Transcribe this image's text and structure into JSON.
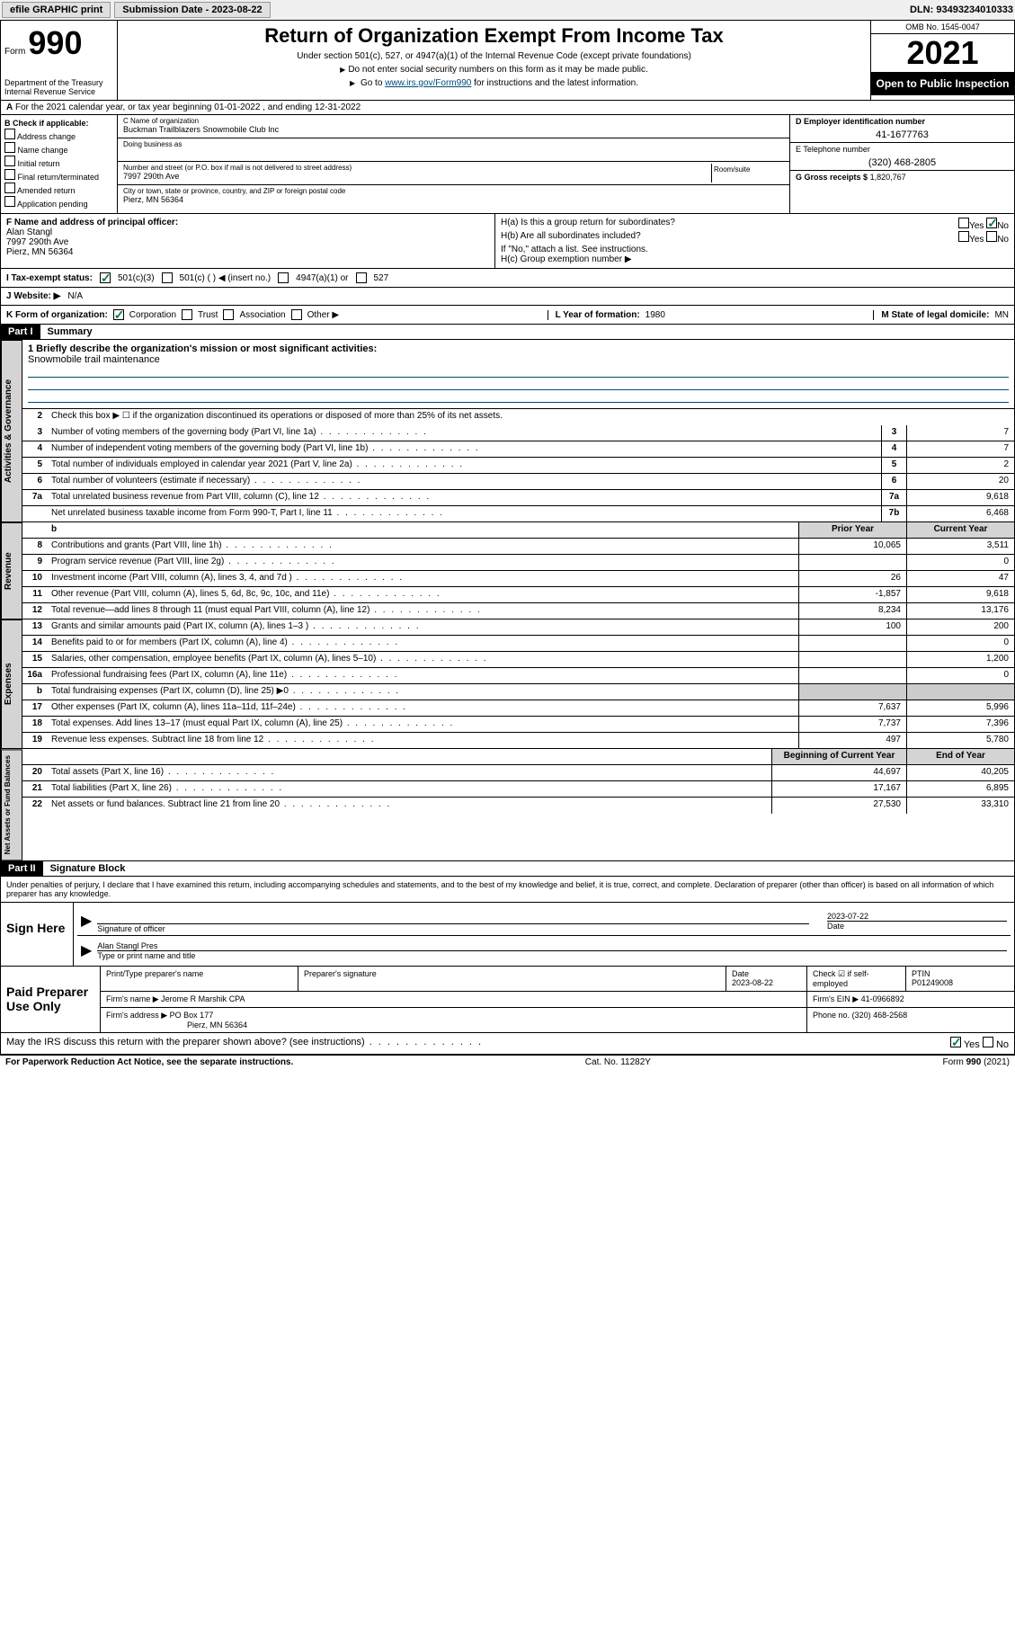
{
  "topbar": {
    "efile": "efile GRAPHIC print",
    "sub_label": "Submission Date - 2023-08-22",
    "dln": "DLN: 93493234010333"
  },
  "header": {
    "form_label": "Form",
    "form_num": "990",
    "title": "Return of Organization Exempt From Income Tax",
    "sub1": "Under section 501(c), 527, or 4947(a)(1) of the Internal Revenue Code (except private foundations)",
    "sub2": "Do not enter social security numbers on this form as it may be made public.",
    "sub3_pre": "Go to ",
    "sub3_link": "www.irs.gov/Form990",
    "sub3_post": " for instructions and the latest information.",
    "omb": "OMB No. 1545-0047",
    "year": "2021",
    "open_insp": "Open to Public Inspection",
    "dept": "Department of the Treasury",
    "irs": "Internal Revenue Service"
  },
  "row_a": "For the 2021 calendar year, or tax year beginning 01-01-2022  , and ending 12-31-2022",
  "col_b": {
    "hdr": "B Check if applicable:",
    "addr": "Address change",
    "name": "Name change",
    "init": "Initial return",
    "final": "Final return/terminated",
    "amend": "Amended return",
    "app": "Application pending"
  },
  "col_c": {
    "name_label": "C Name of organization",
    "name_val": "Buckman Trailblazers Snowmobile Club Inc",
    "dba_label": "Doing business as",
    "street_label": "Number and street (or P.O. box if mail is not delivered to street address)",
    "street_val": "7997 290th Ave",
    "room_label": "Room/suite",
    "city_label": "City or town, state or province, country, and ZIP or foreign postal code",
    "city_val": "Pierz, MN  56364"
  },
  "col_d": {
    "ein_label": "D Employer identification number",
    "ein_val": "41-1677763",
    "phone_label": "E Telephone number",
    "phone_val": "(320) 468-2805",
    "gross_label": "G Gross receipts $",
    "gross_val": "1,820,767"
  },
  "row_f": {
    "label": "F Name and address of principal officer:",
    "name": "Alan Stangl",
    "addr1": "7997 290th Ave",
    "addr2": "Pierz, MN  56364"
  },
  "row_h": {
    "ha": "H(a)  Is this a group return for subordinates?",
    "hb": "H(b)  Are all subordinates included?",
    "hb_note": "If \"No,\" attach a list. See instructions.",
    "hc": "H(c)  Group exemption number ▶",
    "yes": "Yes",
    "no": "No"
  },
  "row_i": {
    "label": "I  Tax-exempt status:",
    "c3": "501(c)(3)",
    "c_other": "501(c) (  ) ◀ (insert no.)",
    "a4947": "4947(a)(1) or",
    "s527": "527"
  },
  "row_j": {
    "label": "J  Website: ▶",
    "val": "N/A"
  },
  "row_k": {
    "label": "K Form of organization:",
    "corp": "Corporation",
    "trust": "Trust",
    "assoc": "Association",
    "other": "Other ▶",
    "l_label": "L Year of formation:",
    "l_val": "1980",
    "m_label": "M State of legal domicile:",
    "m_val": "MN"
  },
  "part1": {
    "hdr": "Part I",
    "title": "Summary",
    "vtab_ag": "Activities & Governance",
    "vtab_rev": "Revenue",
    "vtab_exp": "Expenses",
    "vtab_na": "Net Assets or Fund Balances",
    "l1_label": "1  Briefly describe the organization's mission or most significant activities:",
    "l1_val": "Snowmobile trail maintenance",
    "l2": "Check this box ▶ ☐  if the organization discontinued its operations or disposed of more than 25% of its net assets.",
    "lines": [
      {
        "n": "3",
        "d": "Number of voting members of the governing body (Part VI, line 1a)",
        "c": "3",
        "v": "7"
      },
      {
        "n": "4",
        "d": "Number of independent voting members of the governing body (Part VI, line 1b)",
        "c": "4",
        "v": "7"
      },
      {
        "n": "5",
        "d": "Total number of individuals employed in calendar year 2021 (Part V, line 2a)",
        "c": "5",
        "v": "2"
      },
      {
        "n": "6",
        "d": "Total number of volunteers (estimate if necessary)",
        "c": "6",
        "v": "20"
      },
      {
        "n": "7a",
        "d": "Total unrelated business revenue from Part VIII, column (C), line 12",
        "c": "7a",
        "v": "9,618"
      },
      {
        "n": "",
        "d": "Net unrelated business taxable income from Form 990-T, Part I, line 11",
        "c": "7b",
        "v": "6,468"
      }
    ],
    "col_hdr_prior": "Prior Year",
    "col_hdr_curr": "Current Year",
    "rev_lines": [
      {
        "n": "8",
        "d": "Contributions and grants (Part VIII, line 1h)",
        "p": "10,065",
        "c": "3,511"
      },
      {
        "n": "9",
        "d": "Program service revenue (Part VIII, line 2g)",
        "p": "",
        "c": "0"
      },
      {
        "n": "10",
        "d": "Investment income (Part VIII, column (A), lines 3, 4, and 7d )",
        "p": "26",
        "c": "47"
      },
      {
        "n": "11",
        "d": "Other revenue (Part VIII, column (A), lines 5, 6d, 8c, 9c, 10c, and 11e)",
        "p": "-1,857",
        "c": "9,618"
      },
      {
        "n": "12",
        "d": "Total revenue—add lines 8 through 11 (must equal Part VIII, column (A), line 12)",
        "p": "8,234",
        "c": "13,176"
      }
    ],
    "exp_lines": [
      {
        "n": "13",
        "d": "Grants and similar amounts paid (Part IX, column (A), lines 1–3 )",
        "p": "100",
        "c": "200"
      },
      {
        "n": "14",
        "d": "Benefits paid to or for members (Part IX, column (A), line 4)",
        "p": "",
        "c": "0"
      },
      {
        "n": "15",
        "d": "Salaries, other compensation, employee benefits (Part IX, column (A), lines 5–10)",
        "p": "",
        "c": "1,200"
      },
      {
        "n": "16a",
        "d": "Professional fundraising fees (Part IX, column (A), line 11e)",
        "p": "",
        "c": "0"
      },
      {
        "n": "b",
        "d": "Total fundraising expenses (Part IX, column (D), line 25) ▶0",
        "p": "grey",
        "c": "grey"
      },
      {
        "n": "17",
        "d": "Other expenses (Part IX, column (A), lines 11a–11d, 11f–24e)",
        "p": "7,637",
        "c": "5,996"
      },
      {
        "n": "18",
        "d": "Total expenses. Add lines 13–17 (must equal Part IX, column (A), line 25)",
        "p": "7,737",
        "c": "7,396"
      },
      {
        "n": "19",
        "d": "Revenue less expenses. Subtract line 18 from line 12",
        "p": "497",
        "c": "5,780"
      }
    ],
    "col_hdr_beg": "Beginning of Current Year",
    "col_hdr_end": "End of Year",
    "na_lines": [
      {
        "n": "20",
        "d": "Total assets (Part X, line 16)",
        "p": "44,697",
        "c": "40,205"
      },
      {
        "n": "21",
        "d": "Total liabilities (Part X, line 26)",
        "p": "17,167",
        "c": "6,895"
      },
      {
        "n": "22",
        "d": "Net assets or fund balances. Subtract line 21 from line 20",
        "p": "27,530",
        "c": "33,310"
      }
    ]
  },
  "part2": {
    "hdr": "Part II",
    "title": "Signature Block",
    "decl": "Under penalties of perjury, I declare that I have examined this return, including accompanying schedules and statements, and to the best of my knowledge and belief, it is true, correct, and complete. Declaration of preparer (other than officer) is based on all information of which preparer has any knowledge.",
    "sign_here": "Sign Here",
    "sig_off": "Signature of officer",
    "date_label": "Date",
    "date_val": "2023-07-22",
    "name_val": "Alan Stangl Pres",
    "name_label": "Type or print name and title",
    "paid": "Paid Preparer Use Only",
    "prep_name_h": "Print/Type preparer's name",
    "prep_sig_h": "Preparer's signature",
    "prep_date_h": "Date",
    "prep_date_v": "2023-08-22",
    "prep_check": "Check ☑ if self-employed",
    "ptin_h": "PTIN",
    "ptin_v": "P01249008",
    "firm_name_l": "Firm's name   ▶",
    "firm_name_v": "Jerome R Marshik CPA",
    "firm_ein_l": "Firm's EIN ▶",
    "firm_ein_v": "41-0966892",
    "firm_addr_l": "Firm's address ▶",
    "firm_addr_v": "PO Box 177",
    "firm_addr_v2": "Pierz, MN  56364",
    "phone_l": "Phone no.",
    "phone_v": "(320) 468-2568",
    "discuss": "May the IRS discuss this return with the preparer shown above? (see instructions)"
  },
  "footer": {
    "pra": "For Paperwork Reduction Act Notice, see the separate instructions.",
    "cat": "Cat. No. 11282Y",
    "form": "Form 990 (2021)"
  },
  "colors": {
    "link": "#004b7a",
    "check_green": "#0a7c3e",
    "grey_bg": "#d4d4d4"
  }
}
